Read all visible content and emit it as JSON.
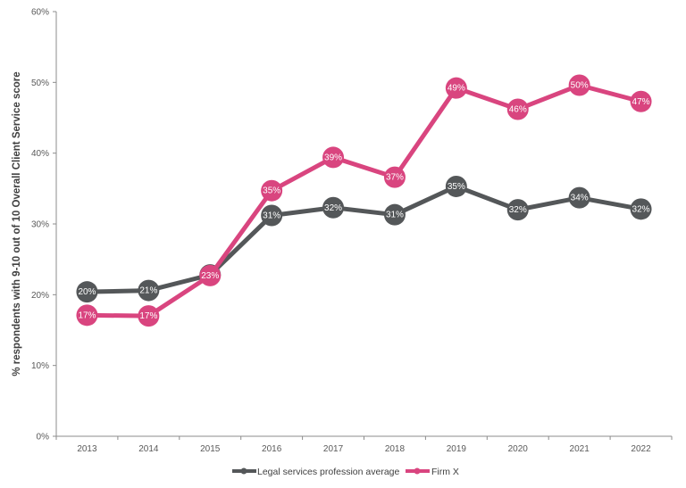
{
  "chart_data": {
    "type": "line",
    "title": "",
    "xlabel": "",
    "ylabel": "% respondents with 9-10 out of 10 Overall Client Service score",
    "ylim": [
      0,
      60
    ],
    "y_ticks": [
      "0%",
      "10%",
      "20%",
      "30%",
      "40%",
      "50%",
      "60%"
    ],
    "categories": [
      "2013",
      "2014",
      "2015",
      "2016",
      "2017",
      "2018",
      "2019",
      "2020",
      "2021",
      "2022"
    ],
    "grid": false,
    "legend_position": "bottom",
    "series": [
      {
        "name": "Legal services profession average",
        "color": "#545759",
        "values": [
          20.4,
          20.6,
          22.8,
          31.2,
          32.3,
          31.3,
          35.3,
          32.0,
          33.7,
          32.1
        ],
        "labels": [
          "20%",
          "21%",
          "23%",
          "31%",
          "32%",
          "31%",
          "35%",
          "32%",
          "34%",
          "32%"
        ]
      },
      {
        "name": "Firm X",
        "color": "#d9457f",
        "values": [
          17.1,
          17.0,
          22.7,
          34.7,
          39.4,
          36.6,
          49.2,
          46.2,
          49.6,
          47.3
        ],
        "labels": [
          "17%",
          "17%",
          "23%",
          "35%",
          "39%",
          "37%",
          "49%",
          "46%",
          "50%",
          "47%"
        ]
      }
    ]
  },
  "legend": {
    "items": [
      "Legal services profession average",
      "Firm X"
    ]
  }
}
